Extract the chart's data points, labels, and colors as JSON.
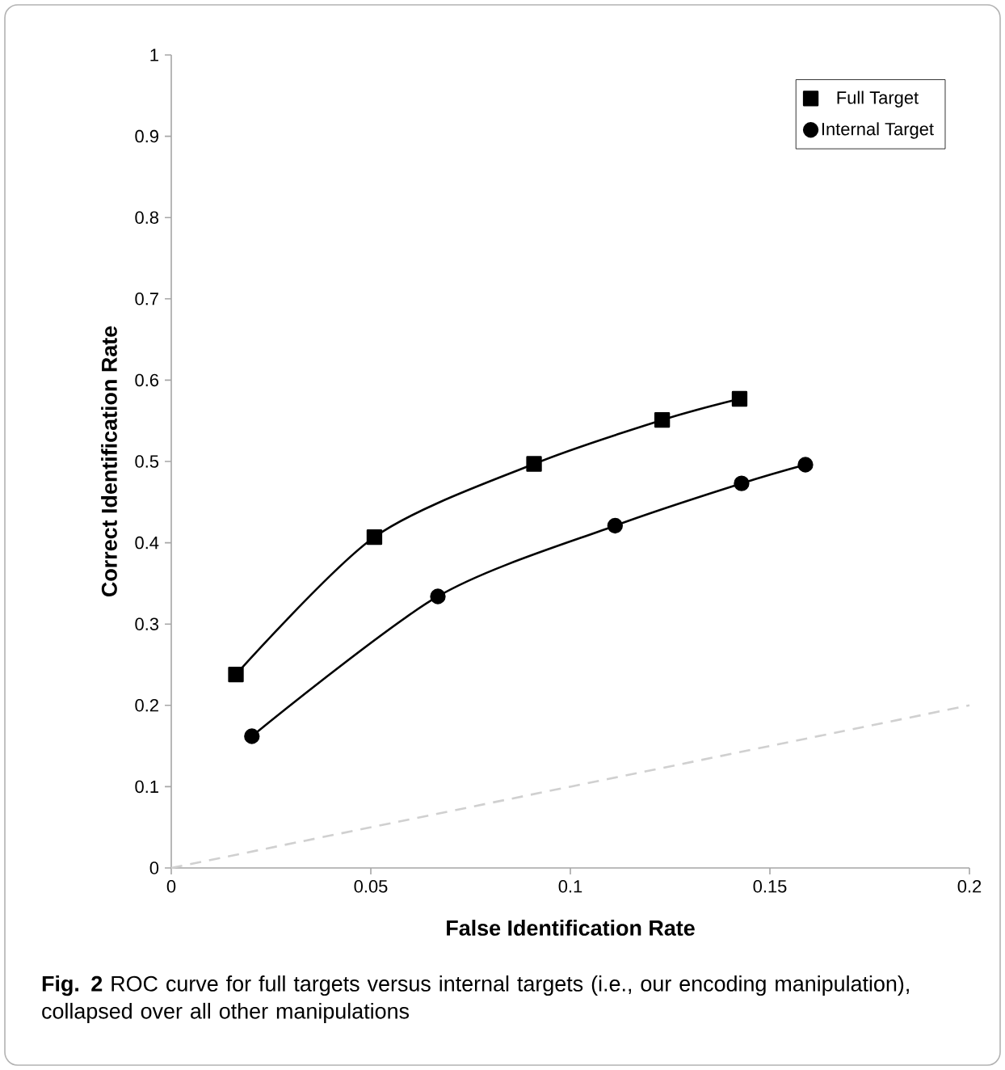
{
  "chart_data": {
    "type": "line",
    "xlabel": "False Identification Rate",
    "ylabel": "Correct Identification Rate",
    "xlim": [
      0,
      0.2
    ],
    "xticks": [
      0,
      0.05,
      0.1,
      0.15,
      0.2
    ],
    "ylim": [
      0,
      1
    ],
    "yticks": [
      0,
      0.1,
      0.2,
      0.3,
      0.4,
      0.5,
      0.6,
      0.7,
      0.8,
      0.9,
      1
    ],
    "legend": "top right",
    "grid": false,
    "series": [
      {
        "name": "Full Target",
        "color": "#000000",
        "marker": "square",
        "line_style": "solid",
        "x": [
          0.0162,
          0.0509,
          0.0909,
          0.123,
          0.1424
        ],
        "values": [
          0.238,
          0.407,
          0.497,
          0.551,
          0.577
        ]
      },
      {
        "name": "Internal Target",
        "color": "#000000",
        "marker": "circle",
        "line_style": "solid",
        "x": [
          0.0202,
          0.0668,
          0.1112,
          0.1429,
          0.1589
        ],
        "values": [
          0.162,
          0.334,
          0.421,
          0.473,
          0.496
        ]
      },
      {
        "color": "#d0d0d0",
        "marker": "none",
        "line_style": "dashed",
        "x": [
          0,
          0.2
        ],
        "values": [
          0,
          0.2
        ]
      }
    ],
    "annotations": [
      "**Fig. 2** ROC curve for full targets versus internal targets (i.e., our encoding manipulation), collapsed over all other manipulations"
    ]
  }
}
